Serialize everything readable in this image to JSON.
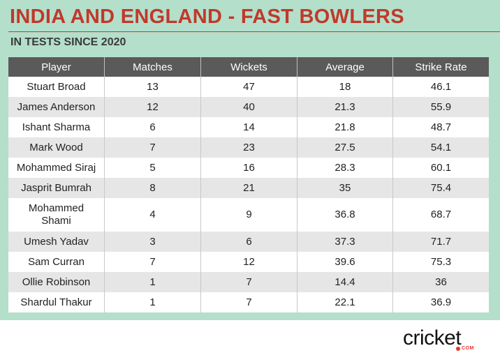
{
  "header": {
    "title": "INDIA AND ENGLAND - FAST BOWLERS",
    "subtitle": "IN TESTS SINCE 2020"
  },
  "colors": {
    "background_panel": "#b4dfcb",
    "title": "#c0392b",
    "header_row": "#5a5a5a",
    "row_alt": "#e6e6e6",
    "logo_accent": "#e8362d"
  },
  "chart_data": {
    "type": "table",
    "title": "INDIA AND ENGLAND - FAST BOWLERS",
    "subtitle": "IN TESTS SINCE 2020",
    "columns": [
      "Player",
      "Matches",
      "Wickets",
      "Average",
      "Strike Rate"
    ],
    "rows": [
      [
        "Stuart Broad",
        "13",
        "47",
        "18",
        "46.1"
      ],
      [
        "James Anderson",
        "12",
        "40",
        "21.3",
        "55.9"
      ],
      [
        "Ishant Sharma",
        "6",
        "14",
        "21.8",
        "48.7"
      ],
      [
        "Mark Wood",
        "7",
        "23",
        "27.5",
        "54.1"
      ],
      [
        "Mohammed Siraj",
        "5",
        "16",
        "28.3",
        "60.1"
      ],
      [
        "Jasprit Bumrah",
        "8",
        "21",
        "35",
        "75.4"
      ],
      [
        "Mohammed Shami",
        "4",
        "9",
        "36.8",
        "68.7"
      ],
      [
        "Umesh Yadav",
        "3",
        "6",
        "37.3",
        "71.7"
      ],
      [
        "Sam Curran",
        "7",
        "12",
        "39.6",
        "75.3"
      ],
      [
        "Ollie Robinson",
        "1",
        "7",
        "14.4",
        "36"
      ],
      [
        "Shardul Thakur",
        "1",
        "7",
        "22.1",
        "36.9"
      ]
    ]
  },
  "logo": {
    "word": "cricket",
    "sub": "COM"
  }
}
